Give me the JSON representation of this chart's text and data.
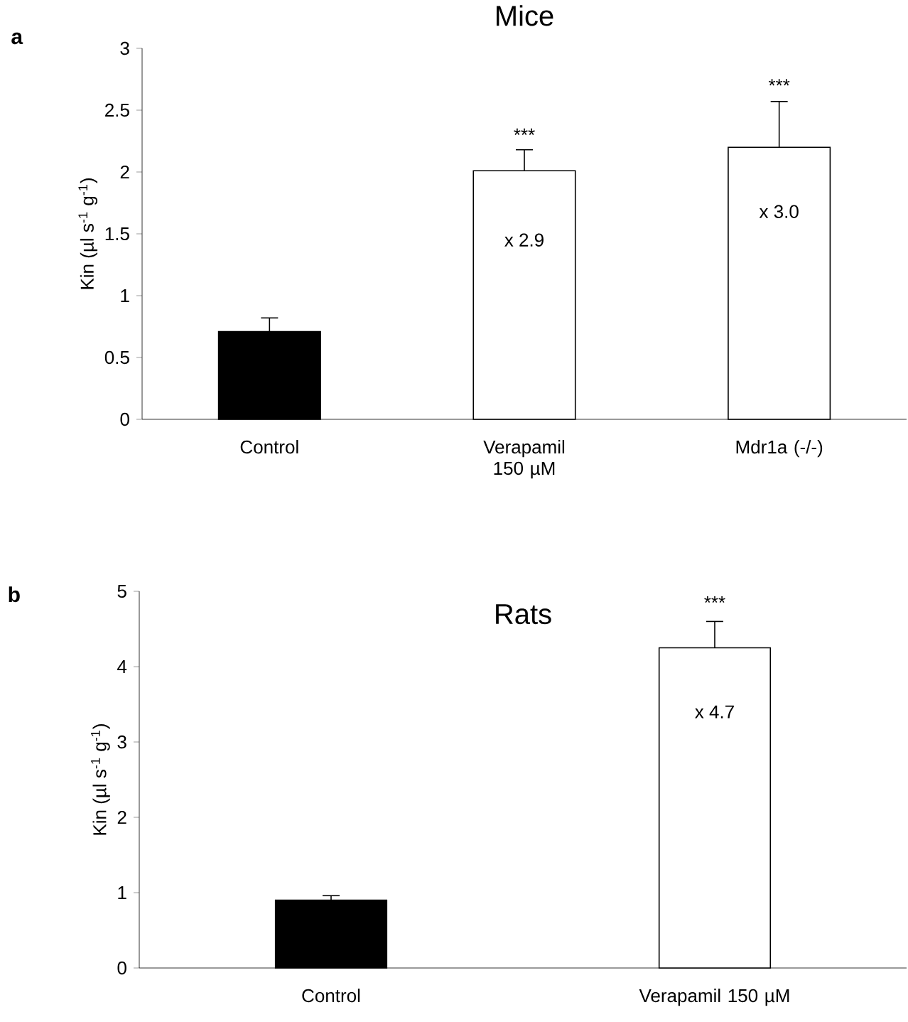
{
  "chart_data": [
    {
      "type": "bar",
      "title": "Mice",
      "ylabel": "Kin (µl s$^{-1}$ g$^{-1}$)",
      "categories": [
        "Control",
        "Verapamil 150 µM",
        "Mdr1a (-/-)"
      ],
      "values": [
        0.71,
        2.01,
        2.2
      ],
      "colors": [
        "#000000",
        "#ffffff",
        "#ffffff"
      ],
      "errors": [
        [
          0.71,
          0.82
        ],
        [
          2.01,
          2.18
        ],
        [
          2.2,
          2.57
        ]
      ],
      "ylim": [
        0,
        3
      ],
      "yticks": [
        0,
        0.5,
        1,
        1.5,
        2,
        2.5,
        3
      ],
      "grid": false,
      "annotations": [
        "a",
        {
          "text": "***",
          "x": "Verapamil 150 µM",
          "y": 2.3
        },
        {
          "text": "x 2.9",
          "x": "Verapamil 150 µM",
          "y": 1.45
        },
        {
          "text": "***",
          "x": "Mdr1a (-/-)",
          "y": 2.7
        },
        {
          "text": "x 3.0",
          "x": "Mdr1a (-/-)",
          "y": 1.68
        }
      ]
    },
    {
      "type": "bar",
      "title": "Rats",
      "ylabel": "Kin (µl s$^{-1}$ g$^{-1}$)",
      "categories": [
        "Control",
        "Verapamil 150 µM"
      ],
      "values": [
        0.9,
        4.25
      ],
      "colors": [
        "#000000",
        "#ffffff"
      ],
      "errors": [
        [
          0.9,
          0.96
        ],
        [
          4.25,
          4.6
        ]
      ],
      "ylim": [
        0,
        5
      ],
      "yticks": [
        0,
        1,
        2,
        3,
        4,
        5
      ],
      "grid": false,
      "annotations": [
        "b",
        {
          "text": "***",
          "x": "Verapamil 150 µM",
          "y": 4.85
        },
        {
          "text": "x 4.7",
          "x": "Verapamil 150 µM",
          "y": 3.4
        }
      ]
    }
  ]
}
